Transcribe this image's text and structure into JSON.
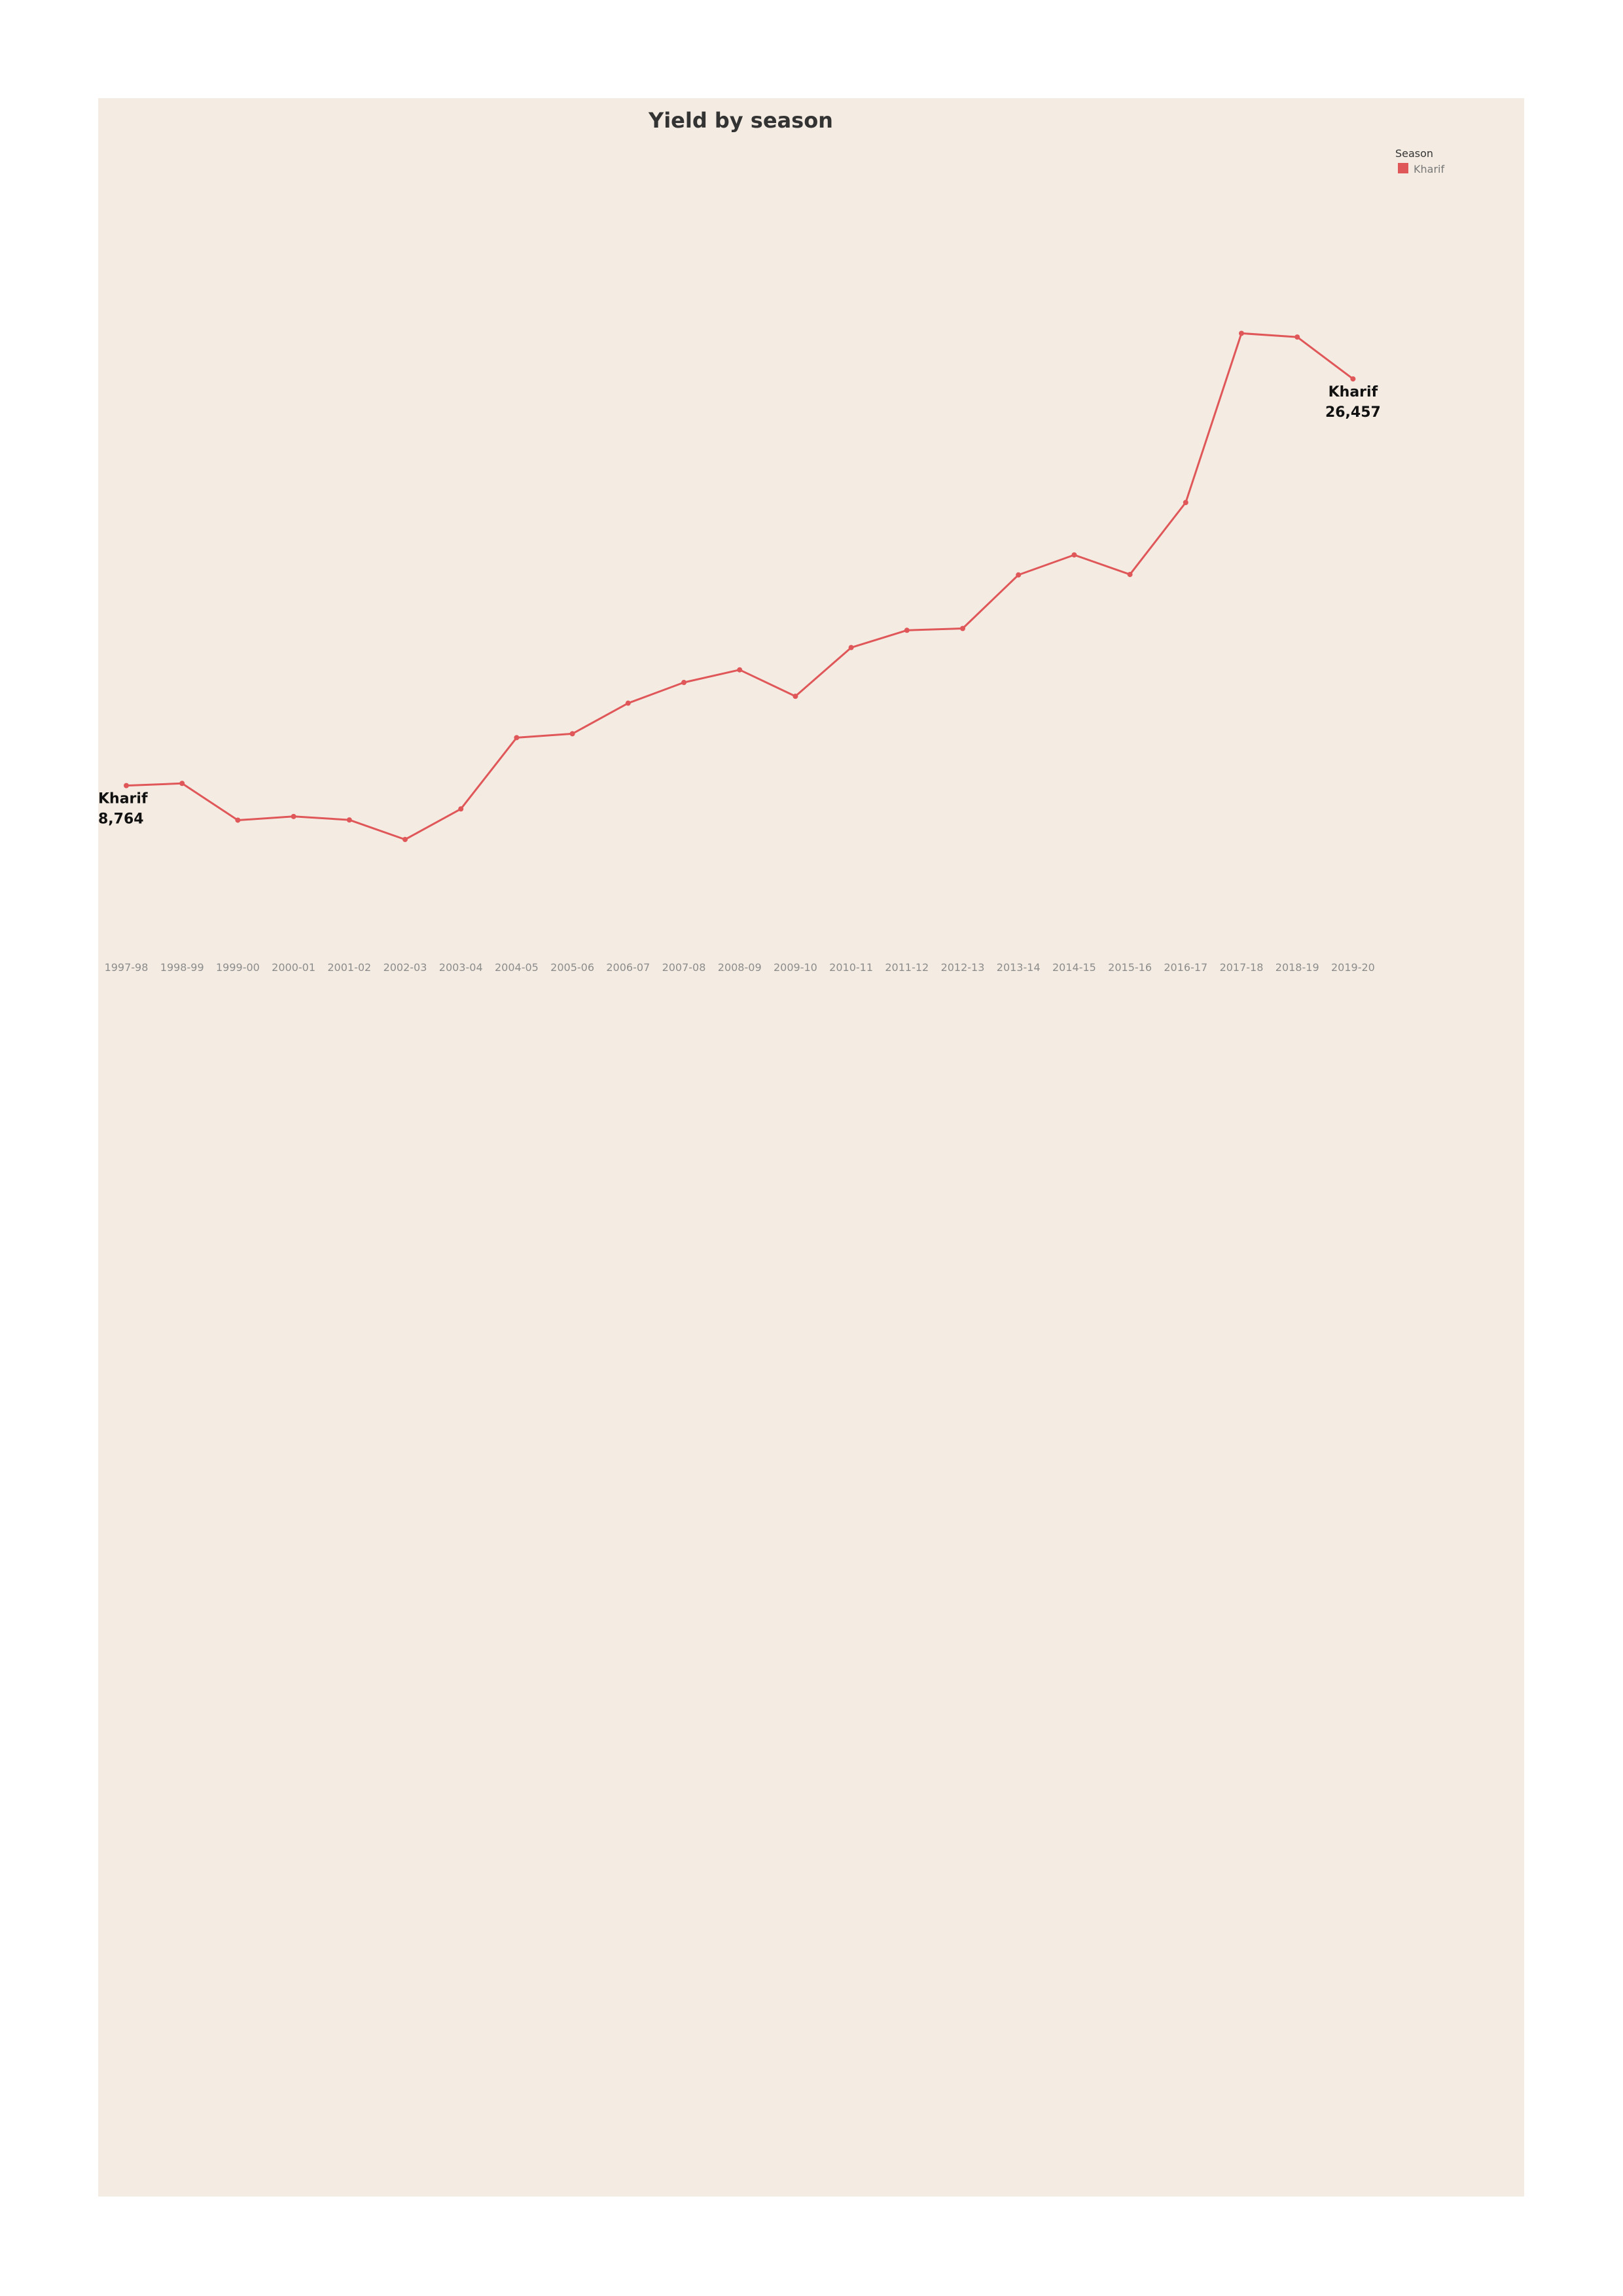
{
  "chart_data": {
    "type": "line",
    "title": "Yield by season",
    "xlabel": "",
    "ylabel": "",
    "categories": [
      "1997-98",
      "1998-99",
      "1999-00",
      "2000-01",
      "2001-02",
      "2002-03",
      "2003-04",
      "2004-05",
      "2005-06",
      "2006-07",
      "2007-08",
      "2008-09",
      "2009-10",
      "2010-11",
      "2011-12",
      "2012-13",
      "2013-14",
      "2014-15",
      "2015-16",
      "2016-17",
      "2017-18",
      "2018-19",
      "2019-20"
    ],
    "series": [
      {
        "name": "Kharif",
        "color": "#e05759",
        "values": [
          8764,
          8860,
          7260,
          7420,
          7270,
          6420,
          7750,
          10850,
          11020,
          12350,
          13250,
          13800,
          12650,
          14770,
          15520,
          15600,
          17930,
          18800,
          17950,
          21080,
          28440,
          28280,
          26457
        ]
      }
    ],
    "ylim": [
      0,
      35000
    ],
    "grid": false,
    "y_axis_visible": false,
    "legend": {
      "title": "Season",
      "position": "top-right",
      "entries": [
        "Kharif"
      ]
    },
    "end_labels": [
      {
        "index": 0,
        "series": "Kharif",
        "value_text": "8,764"
      },
      {
        "index": 22,
        "series": "Kharif",
        "value_text": "26,457"
      }
    ]
  }
}
